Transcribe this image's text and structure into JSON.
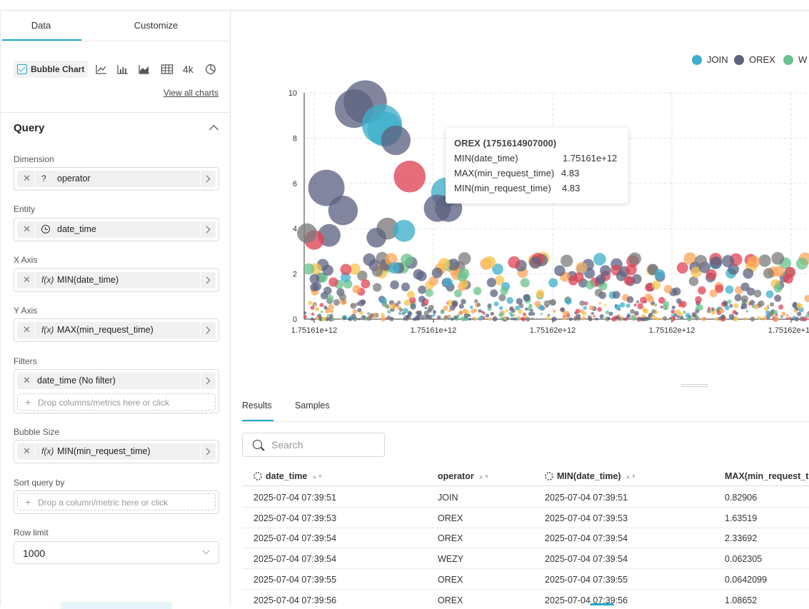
{
  "panel_tabs": {
    "data": "Data",
    "customize": "Customize"
  },
  "chart_types": {
    "selected": "Bubble Chart",
    "icons": [
      "line-chart-icon",
      "bar-chart-icon",
      "area-chart-icon",
      "table-icon",
      "big-number-icon",
      "pie-chart-icon"
    ],
    "big_number_label": "4k",
    "view_all": "View all charts"
  },
  "query": {
    "title": "Query",
    "dimension": {
      "label": "Dimension",
      "icon": "?",
      "value": "operator"
    },
    "entity": {
      "label": "Entity",
      "value": "date_time"
    },
    "x_axis": {
      "label": "X Axis",
      "icon": "f(x)",
      "value": "MIN(date_time)"
    },
    "y_axis": {
      "label": "Y Axis",
      "icon": "f(x)",
      "value": "MAX(min_request_time)"
    },
    "filters": {
      "label": "Filters",
      "value": "date_time (No filter)",
      "drop_text": "Drop columns/metrics here or click"
    },
    "bubble_size": {
      "label": "Bubble Size",
      "icon": "f(x)",
      "value": "MIN(min_request_time)"
    },
    "sort_by": {
      "label": "Sort query by",
      "drop_text": "Drop a column/metric here or click"
    },
    "row_limit": {
      "label": "Row limit",
      "value": "1000"
    }
  },
  "chart_data": {
    "type": "scatter",
    "legend": [
      "JOIN",
      "OREX",
      "WEZY"
    ],
    "legend_visible": [
      "JOIN",
      "OREX",
      "W"
    ],
    "ylim": [
      0,
      10
    ],
    "yticks": [
      "0",
      "2",
      "4",
      "6",
      "8",
      "10"
    ],
    "xticks": [
      "1.75161e+12",
      "1.75161e+12",
      "1.75162e+12",
      "1.75162e+12",
      "1.75162e+12"
    ],
    "grid": true,
    "legend_position": "top-right",
    "colors": {
      "JOIN": "#3dafcb",
      "OREX": "#5e6382",
      "WEZY": "#6ac28c",
      "extra1": "#e04355",
      "extra2": "#fca65a",
      "extra3": "#7b7b7b",
      "extra4": "#f7c44e"
    },
    "series_large": [
      {
        "s": "OREX",
        "x": 0.04,
        "y": 5.8,
        "r": 4.8
      },
      {
        "s": "OREX",
        "x": 0.09,
        "y": 9.3,
        "r": 5.1
      },
      {
        "s": "OREX",
        "x": 0.11,
        "y": 9.6,
        "r": 5.7
      },
      {
        "s": "JOIN",
        "x": 0.14,
        "y": 8.6,
        "r": 5.3
      },
      {
        "s": "JOIN",
        "x": 0.145,
        "y": 8.4,
        "r": 4.6
      },
      {
        "s": "OREX",
        "x": 0.165,
        "y": 7.9,
        "r": 3.9
      },
      {
        "s": "extra1",
        "x": 0.19,
        "y": 6.3,
        "r": 4.2
      },
      {
        "s": "OREX",
        "x": 0.07,
        "y": 4.8,
        "r": 3.9
      },
      {
        "s": "OREX",
        "x": 0.045,
        "y": 3.7,
        "r": 3.0
      },
      {
        "s": "JOIN",
        "x": 0.255,
        "y": 5.6,
        "r": 3.9
      },
      {
        "s": "OREX",
        "x": 0.24,
        "y": 4.9,
        "r": 3.6
      },
      {
        "s": "OREX",
        "x": 0.26,
        "y": 4.9,
        "r": 3.6
      },
      {
        "s": "extra3",
        "x": 0.15,
        "y": 4.0,
        "r": 2.9
      },
      {
        "s": "JOIN",
        "x": 0.18,
        "y": 3.9,
        "r": 2.9
      },
      {
        "s": "OREX",
        "x": 0.13,
        "y": 3.6,
        "r": 2.6
      },
      {
        "s": "extra1",
        "x": 0.018,
        "y": 3.5,
        "r": 2.6
      },
      {
        "s": "extra3",
        "x": 0.005,
        "y": 3.8,
        "r": 2.6
      }
    ]
  },
  "tooltip": {
    "title": "OREX (1751614907000)",
    "rows": [
      {
        "k": "MIN(date_time)",
        "v": "1.75161e+12"
      },
      {
        "k": "MAX(min_request_time)",
        "v": "4.83"
      },
      {
        "k": "MIN(min_request_time)",
        "v": "4.83"
      }
    ]
  },
  "results_tabs": {
    "results": "Results",
    "samples": "Samples"
  },
  "search": {
    "placeholder": "Search"
  },
  "table": {
    "columns": [
      "date_time",
      "operator",
      "MIN(date_time)",
      "MAX(min_request_ti"
    ],
    "rows": [
      [
        "2025-07-04 07:39:51",
        "JOIN",
        "2025-07-04 07:39:51",
        "0.82906"
      ],
      [
        "2025-07-04 07:39:53",
        "OREX",
        "2025-07-04 07:39:53",
        "1.63519"
      ],
      [
        "2025-07-04 07:39:54",
        "OREX",
        "2025-07-04 07:39:54",
        "2.33692"
      ],
      [
        "2025-07-04 07:39:54",
        "WEZY",
        "2025-07-04 07:39:54",
        "0.062305"
      ],
      [
        "2025-07-04 07:39:55",
        "OREX",
        "2025-07-04 07:39:55",
        "0.0642099"
      ],
      [
        "2025-07-04 07:39:56",
        "OREX",
        "2025-07-04 07:39:56",
        "1.08652"
      ]
    ]
  }
}
